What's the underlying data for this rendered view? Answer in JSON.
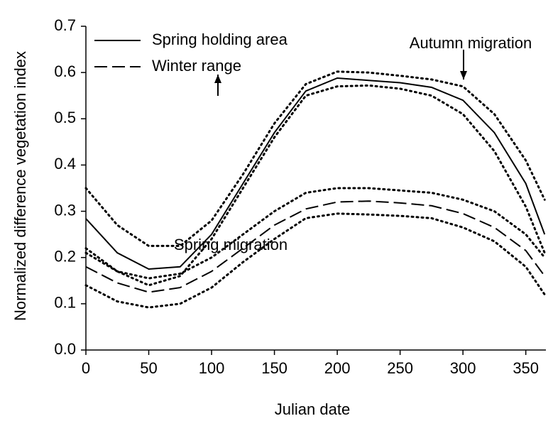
{
  "chart_data": {
    "type": "line",
    "xlabel": "Julian date",
    "ylabel": "Normalized difference vegetation index",
    "x": [
      0,
      25,
      50,
      75,
      100,
      125,
      150,
      175,
      200,
      225,
      250,
      275,
      300,
      325,
      350,
      365
    ],
    "series": [
      {
        "name": "Spring holding area",
        "color": "#000000",
        "dash": "solid",
        "values": [
          0.284,
          0.21,
          0.175,
          0.18,
          0.25,
          0.36,
          0.47,
          0.56,
          0.588,
          0.583,
          0.578,
          0.568,
          0.54,
          0.47,
          0.36,
          0.25
        ]
      },
      {
        "color": "#000000",
        "dash": "dotted",
        "values": [
          0.35,
          0.27,
          0.225,
          0.225,
          0.28,
          0.38,
          0.49,
          0.575,
          0.602,
          0.6,
          0.593,
          0.585,
          0.57,
          0.51,
          0.41,
          0.325
        ]
      },
      {
        "color": "#000000",
        "dash": "dotted",
        "values": [
          0.22,
          0.17,
          0.14,
          0.16,
          0.24,
          0.35,
          0.46,
          0.55,
          0.57,
          0.572,
          0.565,
          0.55,
          0.51,
          0.43,
          0.31,
          0.21
        ]
      },
      {
        "name": "Winter range",
        "color": "#000000",
        "dash": "dashed",
        "values": [
          0.18,
          0.145,
          0.125,
          0.135,
          0.17,
          0.22,
          0.27,
          0.305,
          0.32,
          0.322,
          0.318,
          0.312,
          0.295,
          0.265,
          0.215,
          0.16
        ]
      },
      {
        "color": "#000000",
        "dash": "dotted",
        "values": [
          0.21,
          0.17,
          0.155,
          0.165,
          0.2,
          0.25,
          0.3,
          0.34,
          0.35,
          0.35,
          0.345,
          0.34,
          0.325,
          0.3,
          0.25,
          0.2
        ]
      },
      {
        "color": "#000000",
        "dash": "dotted",
        "values": [
          0.14,
          0.105,
          0.092,
          0.1,
          0.135,
          0.19,
          0.24,
          0.285,
          0.295,
          0.293,
          0.29,
          0.285,
          0.265,
          0.235,
          0.18,
          0.12
        ]
      }
    ],
    "annotations": [
      "Autumn migration",
      "Spring migration"
    ],
    "xlim": [
      0,
      366
    ],
    "ylim": [
      0,
      0.7
    ],
    "xticks": [
      0,
      50,
      100,
      150,
      200,
      250,
      300,
      350
    ],
    "yticks": [
      {
        "value": 0,
        "label": "0.0"
      },
      0.1,
      0.2,
      0.3,
      0.4,
      0.5,
      0.6,
      0.7
    ],
    "legend": "upper-left",
    "grid": false
  }
}
